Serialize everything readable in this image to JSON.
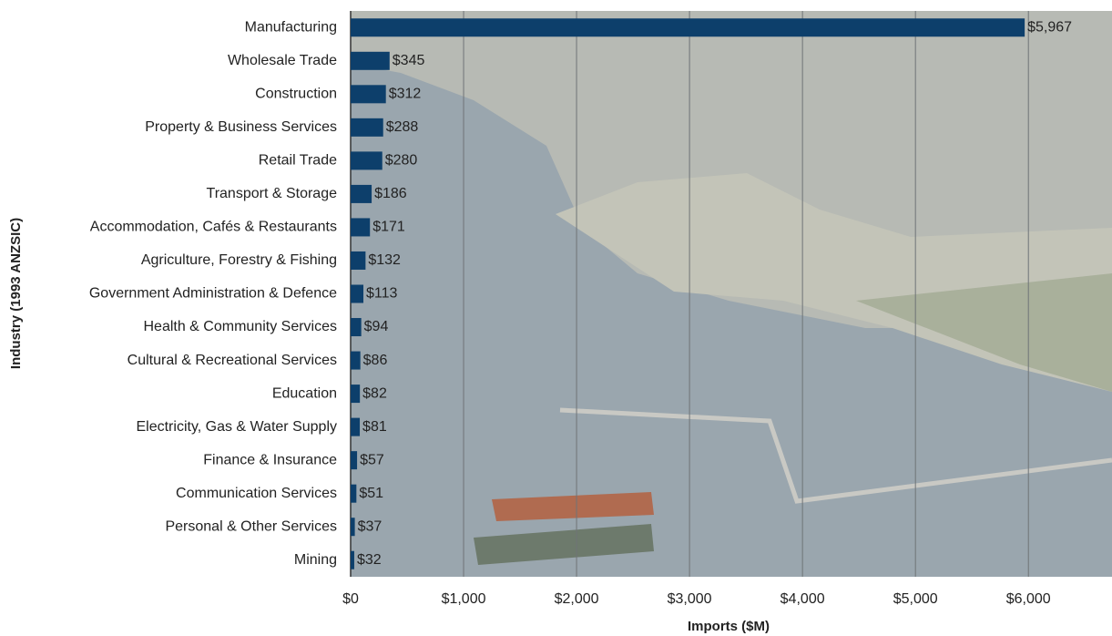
{
  "chart_data": {
    "type": "bar",
    "orientation": "horizontal",
    "x_label": "Imports ($M)",
    "y_label": "Industry (1993 ANZSIC)",
    "categories": [
      "Manufacturing",
      "Wholesale Trade",
      "Construction",
      "Property & Business Services",
      "Retail Trade",
      "Transport & Storage",
      "Accommodation, Cafés & Restaurants",
      "Agriculture, Forestry & Fishing",
      "Government Administration & Defence",
      "Health & Community Services",
      "Cultural & Recreational Services",
      "Education",
      "Electricity, Gas & Water Supply",
      "Finance & Insurance",
      "Communication Services",
      "Personal & Other Services",
      "Mining"
    ],
    "values": [
      5967,
      345,
      312,
      288,
      280,
      186,
      171,
      132,
      113,
      94,
      86,
      82,
      81,
      57,
      51,
      37,
      32
    ],
    "value_labels": [
      "$5,967",
      "$345",
      "$312",
      "$288",
      "$280",
      "$186",
      "$171",
      "$132",
      "$113",
      "$94",
      "$86",
      "$82",
      "$81",
      "$57",
      "$51",
      "$37",
      "$32"
    ],
    "color": "#0d3f6b",
    "xlim": [
      0,
      6740
    ],
    "xticks": [
      {
        "value": 0,
        "label": "$0"
      },
      {
        "value": 1000,
        "label": "$1,000"
      },
      {
        "value": 2000,
        "label": "$2,000"
      },
      {
        "value": 3000,
        "label": "$3,000"
      },
      {
        "value": 4000,
        "label": "$4,000"
      },
      {
        "value": 5000,
        "label": "$5,000"
      },
      {
        "value": 6000,
        "label": "$6,000"
      }
    ],
    "grid": true
  }
}
